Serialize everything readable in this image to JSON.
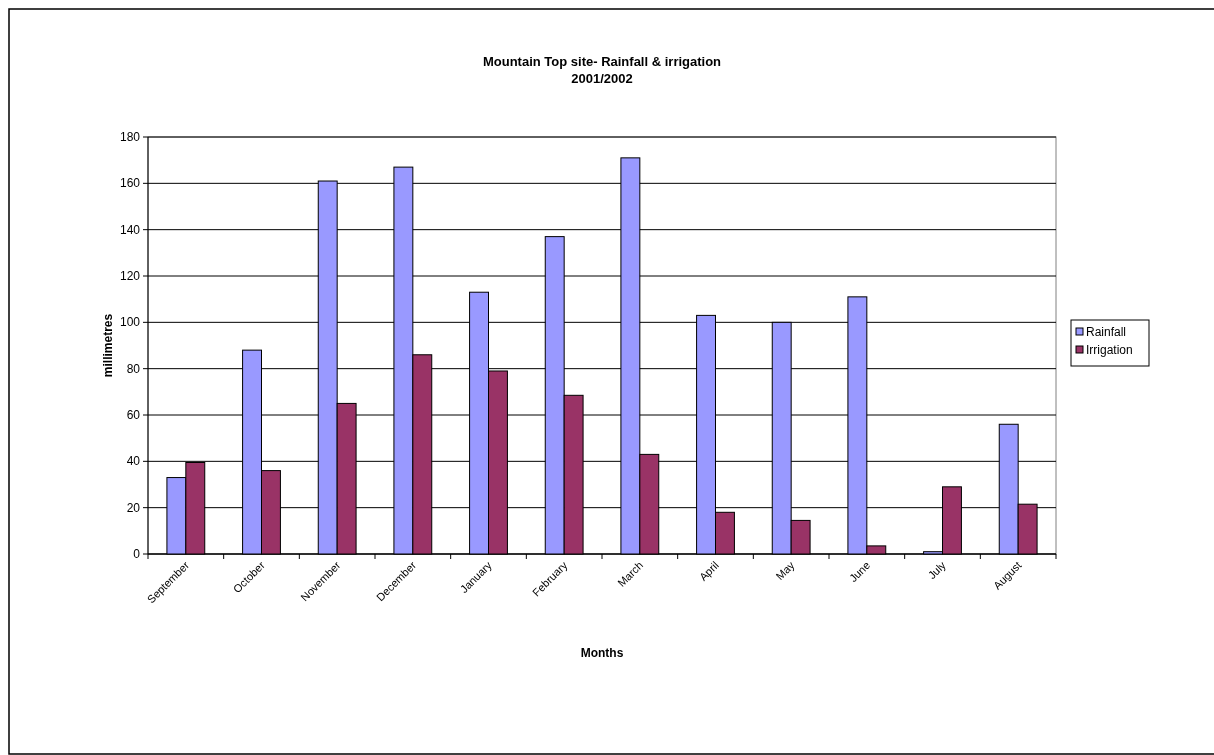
{
  "chart_data": {
    "type": "bar",
    "title": "Mountain Top site- Rainfall & irrigation\n2001/2002",
    "xlabel": "Months",
    "ylabel": "millimetres",
    "categories": [
      "September",
      "October",
      "November",
      "December",
      "January",
      "February",
      "March",
      "April",
      "May",
      "June",
      "July",
      "August"
    ],
    "series": [
      {
        "name": "Rainfall",
        "color": "#9999ff",
        "values": [
          33,
          88,
          161,
          167,
          113,
          137,
          171,
          103,
          100,
          111,
          1,
          56
        ]
      },
      {
        "name": "Irrigation",
        "color": "#993366",
        "values": [
          39.5,
          36,
          65,
          86,
          79,
          68.5,
          43,
          18,
          14.5,
          3.5,
          29,
          21.5
        ]
      }
    ],
    "ylim": [
      0,
      180
    ],
    "yticks": [
      0,
      20,
      40,
      60,
      80,
      100,
      120,
      140,
      160,
      180
    ],
    "grid": "y",
    "legend": "right"
  }
}
